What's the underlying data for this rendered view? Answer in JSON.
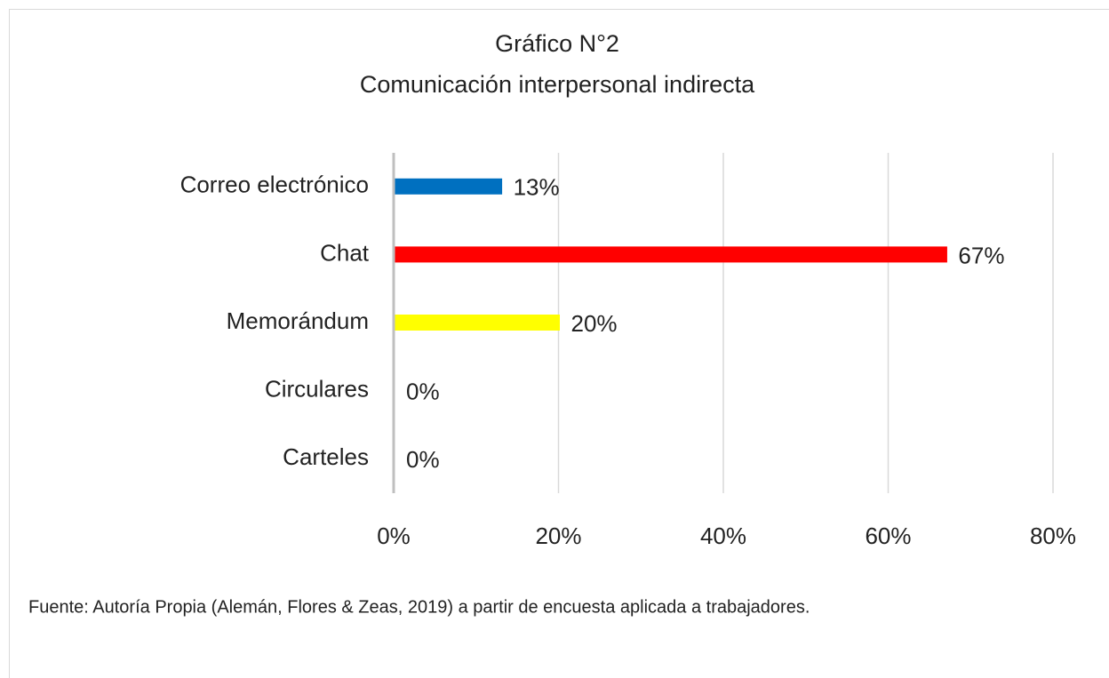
{
  "chart_data": {
    "type": "barh",
    "title": "Gráfico N°2",
    "subtitle": "Comunicación interpersonal indirecta",
    "categories": [
      "Correo electrónico",
      "Chat",
      "Memorándum",
      "Circulares",
      "Carteles"
    ],
    "values": [
      13,
      67,
      20,
      0,
      0
    ],
    "value_labels": [
      "13%",
      "67%",
      "20%",
      "0%",
      "0%"
    ],
    "colors": [
      "#0070c0",
      "#ff0000",
      "#ffff00",
      "#a5a5a5",
      "#a5a5a5"
    ],
    "xlim": [
      0,
      80
    ],
    "xticks": [
      {
        "value": 0,
        "label": "0%"
      },
      {
        "value": 20,
        "label": "20%"
      },
      {
        "value": 40,
        "label": "40%"
      },
      {
        "value": 60,
        "label": "60%"
      },
      {
        "value": 80,
        "label": "80%"
      }
    ],
    "grid": true,
    "source": "Fuente: Autoría Propia (Alemán, Flores & Zeas, 2019) a partir de encuesta aplicada a trabajadores."
  }
}
